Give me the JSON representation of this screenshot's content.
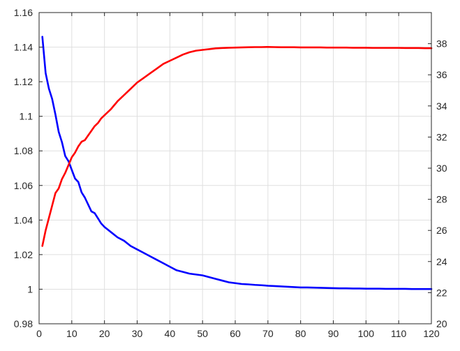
{
  "chart_data": {
    "type": "line",
    "title": "",
    "xlabel": "",
    "ylabel_left": "",
    "ylabel_right": "",
    "grid": true,
    "legend": "none",
    "x_axis": {
      "lim": [
        0,
        120
      ],
      "ticks": [
        0,
        10,
        20,
        30,
        40,
        50,
        60,
        70,
        80,
        90,
        100,
        110,
        120
      ],
      "tick_labels": [
        "0",
        "10",
        "20",
        "30",
        "40",
        "50",
        "60",
        "70",
        "80",
        "90",
        "100",
        "110",
        "120"
      ]
    },
    "y_axis_left": {
      "lim": [
        0.98,
        1.16
      ],
      "ticks": [
        0.98,
        1.0,
        1.02,
        1.04,
        1.06,
        1.08,
        1.1,
        1.12,
        1.14,
        1.16
      ],
      "tick_labels": [
        "0.98",
        "1",
        "1.02",
        "1.04",
        "1.06",
        "1.08",
        "1.1",
        "1.12",
        "1.14",
        "1.16"
      ]
    },
    "y_axis_right": {
      "lim": [
        20,
        40
      ],
      "ticks": [
        20,
        22,
        24,
        26,
        28,
        30,
        32,
        34,
        36,
        38
      ],
      "tick_labels": [
        "20",
        "22",
        "24",
        "26",
        "28",
        "30",
        "32",
        "34",
        "36",
        "38"
      ]
    },
    "series": [
      {
        "axis": "left",
        "color": "#0000ff",
        "x": [
          1,
          2,
          3,
          4,
          5,
          6,
          7,
          8,
          9,
          10,
          11,
          12,
          13,
          14,
          15,
          16,
          17,
          18,
          19,
          20,
          22,
          24,
          26,
          28,
          30,
          32,
          34,
          36,
          38,
          40,
          42,
          44,
          46,
          48,
          50,
          52,
          54,
          56,
          58,
          60,
          62,
          64,
          66,
          68,
          70,
          72,
          74,
          76,
          78,
          80,
          82,
          84,
          86,
          88,
          90,
          92,
          94,
          96,
          98,
          100,
          102,
          104,
          106,
          108,
          110,
          112,
          114,
          116,
          118,
          120
        ],
        "y": [
          1.146,
          1.125,
          1.116,
          1.11,
          1.101,
          1.091,
          1.085,
          1.077,
          1.074,
          1.069,
          1.064,
          1.062,
          1.056,
          1.053,
          1.049,
          1.045,
          1.044,
          1.041,
          1.038,
          1.036,
          1.033,
          1.03,
          1.028,
          1.025,
          1.023,
          1.021,
          1.019,
          1.017,
          1.015,
          1.013,
          1.011,
          1.01,
          1.009,
          1.0085,
          1.008,
          1.007,
          1.006,
          1.005,
          1.004,
          1.0035,
          1.003,
          1.0028,
          1.0025,
          1.0023,
          1.002,
          1.0018,
          1.0016,
          1.0014,
          1.0012,
          1.001,
          1.001,
          1.0009,
          1.0008,
          1.0007,
          1.0006,
          1.0005,
          1.0005,
          1.0004,
          1.0004,
          1.0003,
          1.0003,
          1.0003,
          1.0002,
          1.0002,
          1.0002,
          1.0002,
          1.0001,
          1.0001,
          1.0001,
          1.0001
        ]
      },
      {
        "axis": "right",
        "color": "#ff0000",
        "x": [
          1,
          2,
          3,
          4,
          5,
          6,
          7,
          8,
          9,
          10,
          11,
          12,
          13,
          14,
          15,
          16,
          17,
          18,
          19,
          20,
          22,
          24,
          26,
          28,
          30,
          32,
          34,
          36,
          38,
          40,
          42,
          44,
          46,
          48,
          50,
          52,
          54,
          56,
          58,
          60,
          62,
          64,
          66,
          68,
          70,
          72,
          74,
          76,
          78,
          80,
          82,
          84,
          86,
          88,
          90,
          92,
          94,
          96,
          98,
          100,
          102,
          104,
          106,
          108,
          110,
          112,
          114,
          116,
          118,
          120
        ],
        "y": [
          25.0,
          26.0,
          26.8,
          27.6,
          28.4,
          28.7,
          29.3,
          29.7,
          30.2,
          30.7,
          31.0,
          31.4,
          31.7,
          31.8,
          32.1,
          32.4,
          32.7,
          32.9,
          33.2,
          33.4,
          33.8,
          34.3,
          34.7,
          35.1,
          35.5,
          35.8,
          36.1,
          36.4,
          36.7,
          36.9,
          37.1,
          37.3,
          37.45,
          37.55,
          37.6,
          37.65,
          37.7,
          37.72,
          37.74,
          37.75,
          37.76,
          37.77,
          37.78,
          37.78,
          37.79,
          37.78,
          37.77,
          37.77,
          37.77,
          37.76,
          37.76,
          37.76,
          37.76,
          37.75,
          37.75,
          37.75,
          37.75,
          37.74,
          37.74,
          37.74,
          37.73,
          37.73,
          37.73,
          37.73,
          37.73,
          37.72,
          37.72,
          37.72,
          37.71,
          37.71
        ]
      }
    ]
  },
  "colors": {
    "grid": "#dfdfdf",
    "axis": "#262626",
    "background": "#ffffff"
  }
}
